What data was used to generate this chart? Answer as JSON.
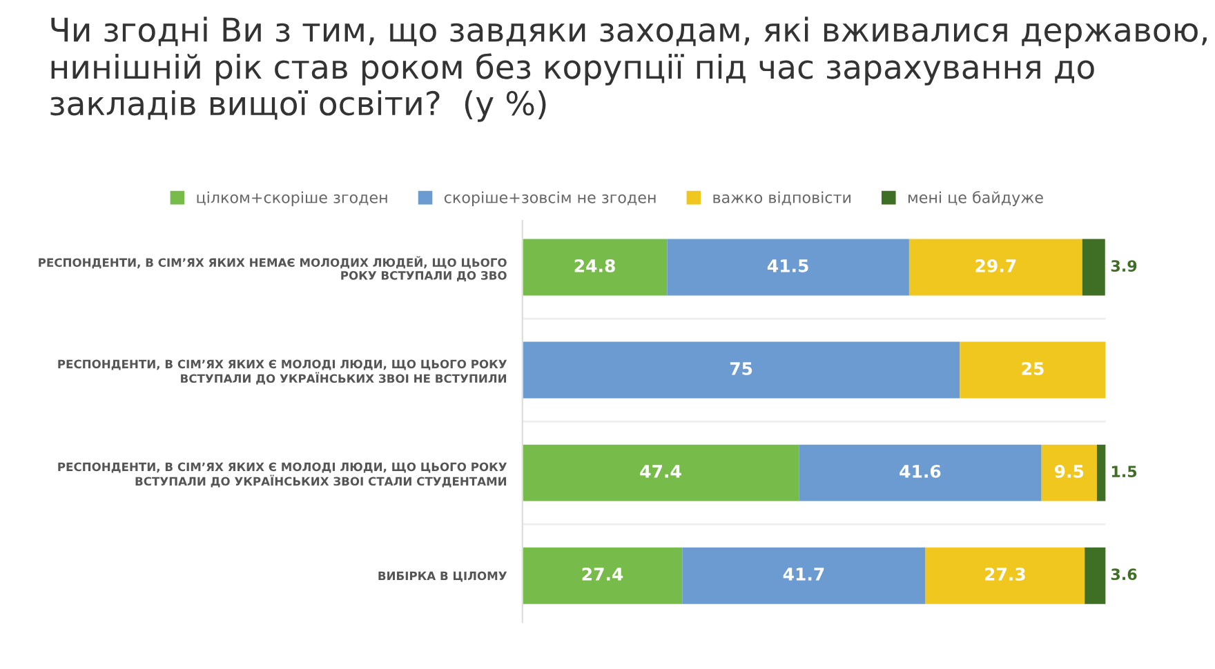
{
  "chart_data": {
    "type": "bar",
    "orientation": "horizontal",
    "stacked": true,
    "title": "Чи згодні Ви з тим, що завдяки заходам, які вживалися державою, нинішній рік став роком без корупції під час зарахування до закладів вищої освіти?  (у %)",
    "categories": [
      "РЕСПОНДЕНТИ, В СІМ’ЯХ ЯКИХ НЕМАЄ МОЛОДИХ ЛЮДЕЙ, ЩО ЦЬОГО\nРОКУ ВСТУПАЛИ ДО ЗВО",
      "РЕСПОНДЕНТИ, В СІМ’ЯХ ЯКИХ Є МОЛОДІ ЛЮДИ, ЩО ЦЬОГО РОКУ\nВСТУПАЛИ ДО УКРАЇНСЬКИХ ЗВОІ НЕ ВСТУПИЛИ",
      "РЕСПОНДЕНТИ, В СІМ’ЯХ ЯКИХ Є МОЛОДІ ЛЮДИ, ЩО ЦЬОГО РОКУ\nВСТУПАЛИ ДО УКРАЇНСЬКИХ ЗВОІ СТАЛИ СТУДЕНТАМИ",
      "ВИБІРКА В ЦІЛОМУ"
    ],
    "series": [
      {
        "name": "цілком+скоріше згоден",
        "color": "#77bb4a",
        "values": [
          24.8,
          0,
          47.4,
          27.4
        ],
        "value_labels": [
          "24.8",
          null,
          "47.4",
          "27.4"
        ]
      },
      {
        "name": "скоріше+зовсім не згоден",
        "color": "#6b9bd0",
        "values": [
          41.5,
          75,
          41.6,
          41.7
        ],
        "value_labels": [
          "41.5",
          "75",
          "41.6",
          "41.7"
        ]
      },
      {
        "name": "важко відповісти",
        "color": "#f0c71e",
        "values": [
          29.7,
          25,
          9.5,
          27.3
        ],
        "value_labels": [
          "29.7",
          "25",
          "9.5",
          "27.3"
        ]
      },
      {
        "name": "мені це байдуже",
        "color": "#3f6e25",
        "values": [
          3.9,
          0,
          1.5,
          3.6
        ],
        "value_labels": [
          "3.9",
          null,
          "1.5",
          "3.6"
        ]
      }
    ],
    "xlim": [
      0,
      100
    ],
    "tick_labels": "y",
    "legend": "top"
  }
}
